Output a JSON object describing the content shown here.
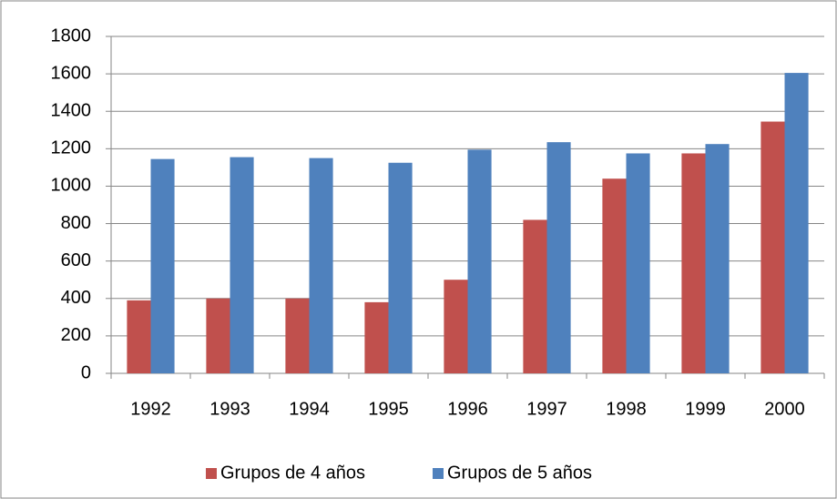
{
  "chart_data": {
    "type": "bar",
    "categories": [
      "1992",
      "1993",
      "1994",
      "1995",
      "1996",
      "1997",
      "1998",
      "1999",
      "2000"
    ],
    "series": [
      {
        "name": "Grupos de 4 años",
        "color": "#c0504d",
        "values": [
          390,
          400,
          400,
          380,
          500,
          820,
          1040,
          1175,
          1345
        ]
      },
      {
        "name": "Grupos de 5 años",
        "color": "#4f81bd",
        "values": [
          1145,
          1155,
          1150,
          1125,
          1195,
          1235,
          1175,
          1225,
          1605
        ]
      }
    ],
    "ylim": [
      0,
      1800
    ],
    "yticks": [
      0,
      200,
      400,
      600,
      800,
      1000,
      1200,
      1400,
      1600,
      1800
    ],
    "grid": true,
    "legend": "bottom"
  }
}
